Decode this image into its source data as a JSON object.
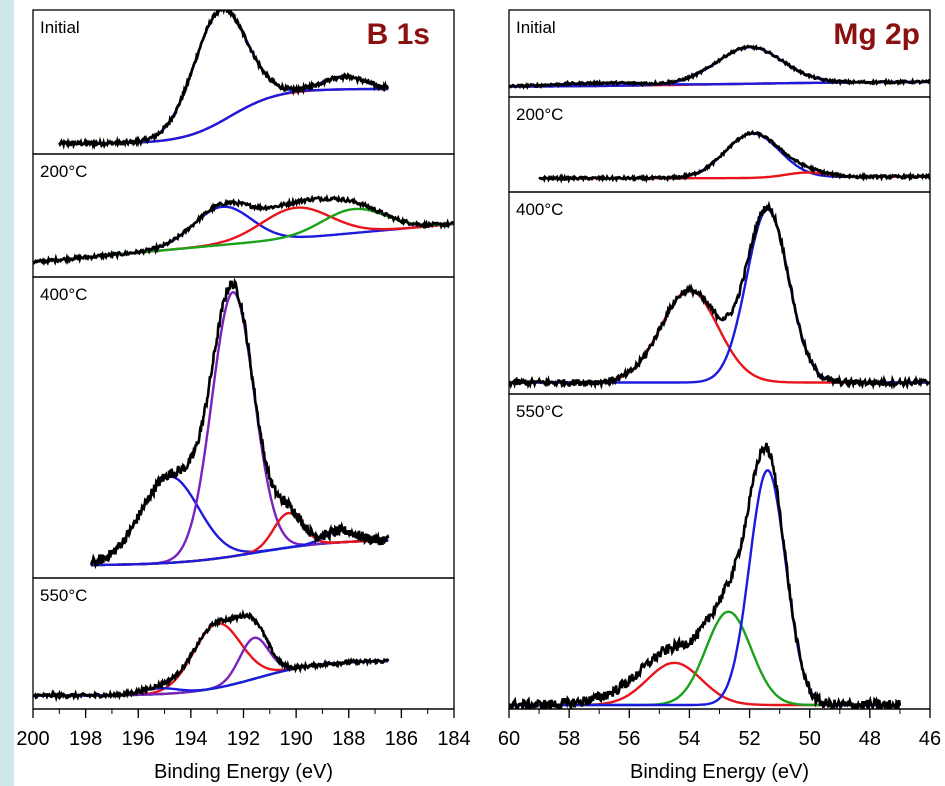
{
  "colors": {
    "sidebar": "#cfe6ea",
    "title": "#8b1010",
    "fit_red": "#e8141b",
    "fit_blue": "#1b1bdd",
    "fit_purple": "#7a22c0",
    "fit_green": "#1aa31a",
    "data": "#000000"
  },
  "chart_data": [
    {
      "type": "line",
      "title": "B 1s",
      "xlabel": "Binding Energy (eV)",
      "xlim": [
        200,
        184
      ],
      "reversed_x": true,
      "xticks": [
        "200",
        "198",
        "196",
        "194",
        "192",
        "190",
        "188",
        "186",
        "184"
      ],
      "panels": [
        {
          "label": "Initial",
          "data_range": [
            199,
            186.5
          ],
          "background": 0.05,
          "step": {
            "center": 192.5,
            "height": 0.42,
            "width": 0.9
          },
          "rise": [
            0.4,
            0.6,
            188
          ],
          "peaks": [
            {
              "color": "blue",
              "center": 192.9,
              "amp": 0.86,
              "sigma": 1.0
            },
            {
              "color": "blue",
              "center": 188.2,
              "amp": 0.1,
              "sigma": 0.8
            }
          ],
          "components": [
            "red step background",
            "blue fit"
          ]
        },
        {
          "label": "200°C",
          "data_range": [
            200,
            184
          ],
          "background": 0.1,
          "slope": 0.35,
          "peaks": [
            {
              "color": "blue",
              "center": 192.8,
              "amp": 0.35,
              "sigma": 1.1
            },
            {
              "color": "red",
              "center": 190.0,
              "amp": 0.28,
              "sigma": 1.3
            },
            {
              "color": "green",
              "center": 187.8,
              "amp": 0.22,
              "sigma": 1.2
            }
          ],
          "components": [
            "blue",
            "red",
            "green"
          ]
        },
        {
          "label": "400°C",
          "data_range": [
            197.8,
            186.5
          ],
          "background": 0.03,
          "step": {
            "center": 191.5,
            "height": 0.09,
            "width": 1.5
          },
          "peaks": [
            {
              "color": "blue",
              "center": 194.8,
              "amp": 0.3,
              "sigma": 1.1
            },
            {
              "color": "purple",
              "center": 192.4,
              "amp": 0.92,
              "sigma": 0.8
            },
            {
              "color": "red",
              "center": 190.3,
              "amp": 0.12,
              "sigma": 0.55
            },
            {
              "color": "blue",
              "center": 188.3,
              "amp": 0.04,
              "sigma": 0.6
            }
          ],
          "components": [
            "blue",
            "purple",
            "red",
            "green step background"
          ]
        },
        {
          "label": "550°C",
          "data_range": [
            200,
            186.5
          ],
          "background": 0.08,
          "step": {
            "center": 191.5,
            "height": 0.3,
            "width": 1.2
          },
          "rise": [
            0.38,
            0.58,
            187
          ],
          "peaks": [
            {
              "color": "red",
              "center": 193.0,
              "amp": 0.55,
              "sigma": 0.9
            },
            {
              "color": "purple",
              "center": 191.6,
              "amp": 0.35,
              "sigma": 0.55
            },
            {
              "color": "blue",
              "center": 195.2,
              "amp": 0.05,
              "sigma": 0.7
            }
          ],
          "components": [
            "red",
            "purple",
            "blue",
            "green step background"
          ]
        }
      ]
    },
    {
      "type": "line",
      "title": "Mg 2p",
      "xlabel": "Binding Energy (eV)",
      "xlim": [
        60,
        46
      ],
      "reversed_x": true,
      "xticks": [
        "60",
        "58",
        "56",
        "54",
        "52",
        "50",
        "48",
        "46"
      ],
      "panels": [
        {
          "label": "Initial",
          "data_range": [
            60,
            46
          ],
          "background": 0.08,
          "step": {
            "center": 53,
            "height": 0.08,
            "width": 3
          },
          "peaks": [
            {
              "color": "blue",
              "center": 52.0,
              "amp": 0.5,
              "sigma": 1.1
            },
            {
              "color": "blue",
              "center": 57.0,
              "amp": 0.04,
              "sigma": 1.5
            }
          ],
          "components": [
            "blue",
            "red background"
          ]
        },
        {
          "label": "200°C",
          "data_range": [
            59,
            46
          ],
          "background": 0.12,
          "step": {
            "center": 50.3,
            "height": 0.02,
            "width": 1.0
          },
          "peaks": [
            {
              "color": "blue",
              "center": 51.9,
              "amp": 0.55,
              "sigma": 0.9
            },
            {
              "color": "red",
              "center": 50.1,
              "amp": 0.06,
              "sigma": 0.7
            }
          ],
          "components": [
            "blue",
            "red"
          ]
        },
        {
          "label": "400°C",
          "data_range": [
            60,
            46
          ],
          "background": 0.04,
          "peaks": [
            {
              "color": "red",
              "center": 54.0,
              "amp": 0.49,
              "sigma": 0.95
            },
            {
              "color": "blue",
              "center": 51.4,
              "amp": 0.92,
              "sigma": 0.7
            }
          ],
          "components": [
            "red",
            "blue"
          ]
        },
        {
          "label": "550°C",
          "data_range": [
            60,
            47
          ],
          "background": 0.0,
          "peaks": [
            {
              "color": "red",
              "center": 54.5,
              "amp": 0.14,
              "sigma": 0.9
            },
            {
              "color": "green",
              "center": 52.7,
              "amp": 0.31,
              "sigma": 0.75
            },
            {
              "color": "blue",
              "center": 51.4,
              "amp": 0.78,
              "sigma": 0.6
            }
          ],
          "shoulder": {
            "center": 55.5,
            "amp": 0.05,
            "sigma": 1.2
          },
          "components": [
            "red",
            "green",
            "blue"
          ]
        }
      ]
    }
  ]
}
